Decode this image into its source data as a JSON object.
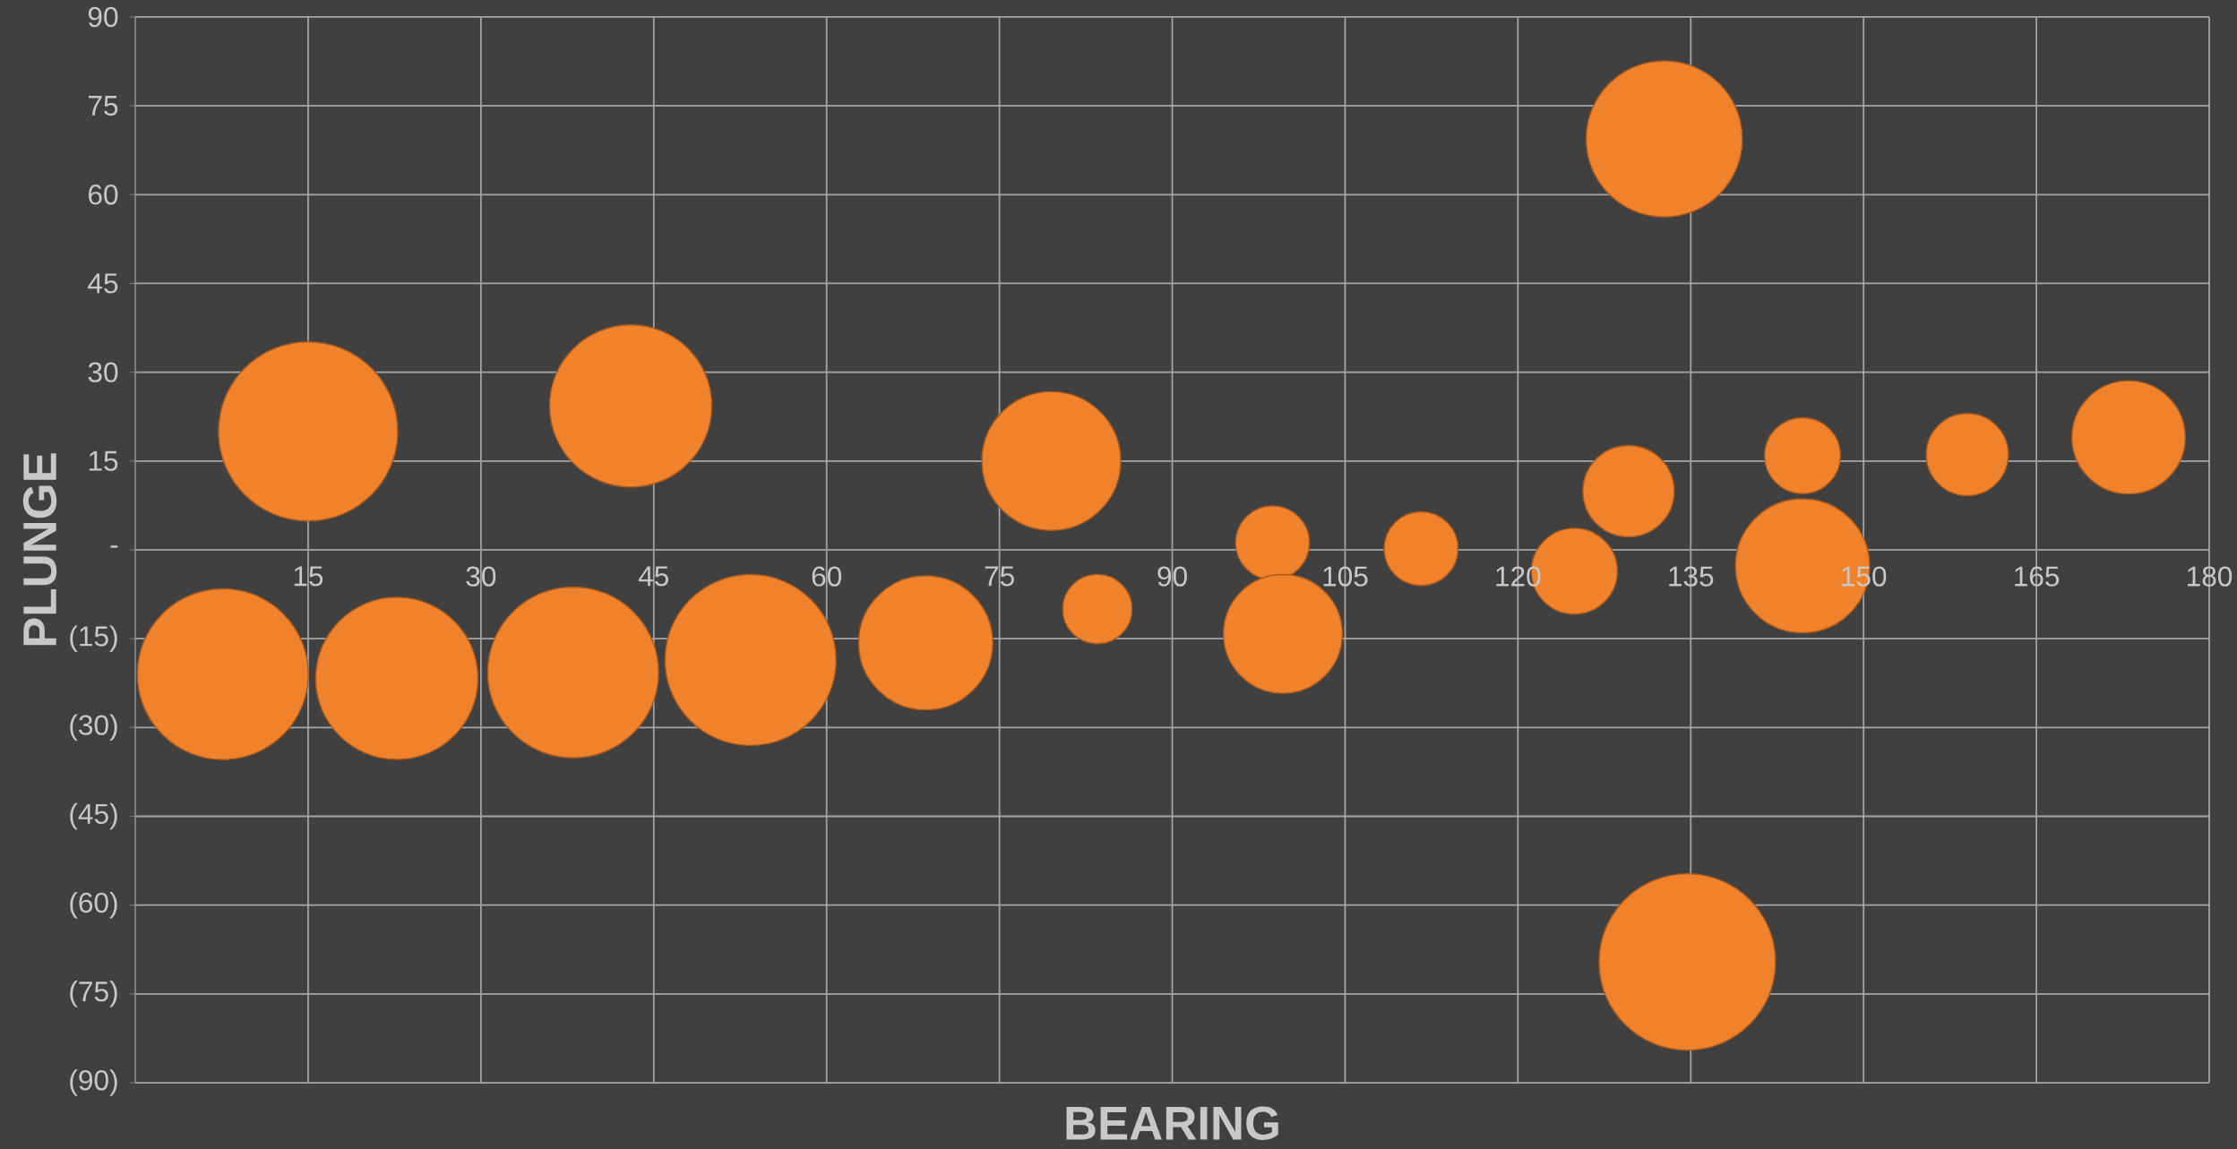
{
  "chart_data": {
    "type": "bubble",
    "xlabel": "BEARING",
    "ylabel": "PLUNGE",
    "color": "#f0822c",
    "grid": true,
    "x": [
      15,
      43,
      79.5,
      98.7,
      111.6,
      124.9,
      129.6,
      132.7,
      144.7,
      144.7,
      159,
      173,
      7.6,
      22.7,
      38,
      53.4,
      68.6,
      83.5,
      99.6,
      134.7
    ],
    "values": [
      20,
      24.3,
      15,
      1.2,
      0.2,
      -3.6,
      9.9,
      69.4,
      15.9,
      -2.7,
      16.1,
      19,
      -21,
      -21.7,
      -20.7,
      -18.6,
      -15.7,
      -10,
      -14.2,
      -69.6
    ],
    "sizes": [
      1,
      0.82,
      0.6,
      0.17,
      0.17,
      0.23,
      0.26,
      0.76,
      0.18,
      0.56,
      0.21,
      0.4,
      0.91,
      0.82,
      0.91,
      0.91,
      0.56,
      0.15,
      0.44,
      0.97
    ],
    "xlim": [
      0,
      180
    ],
    "ylim": [
      -90,
      90
    ],
    "xticks": [
      15,
      30,
      45,
      60,
      75,
      90,
      105,
      120,
      135,
      150,
      165,
      180
    ],
    "yticks": [
      {
        "value": -90,
        "label": "(90)"
      },
      {
        "value": -75,
        "label": "(75)"
      },
      {
        "value": -60,
        "label": "(60)"
      },
      {
        "value": -45,
        "label": "(45)"
      },
      {
        "value": -30,
        "label": "(30)"
      },
      {
        "value": -15,
        "label": "(15)"
      },
      {
        "value": 0,
        "label": "-"
      },
      15,
      30,
      45,
      60,
      75,
      90
    ]
  }
}
